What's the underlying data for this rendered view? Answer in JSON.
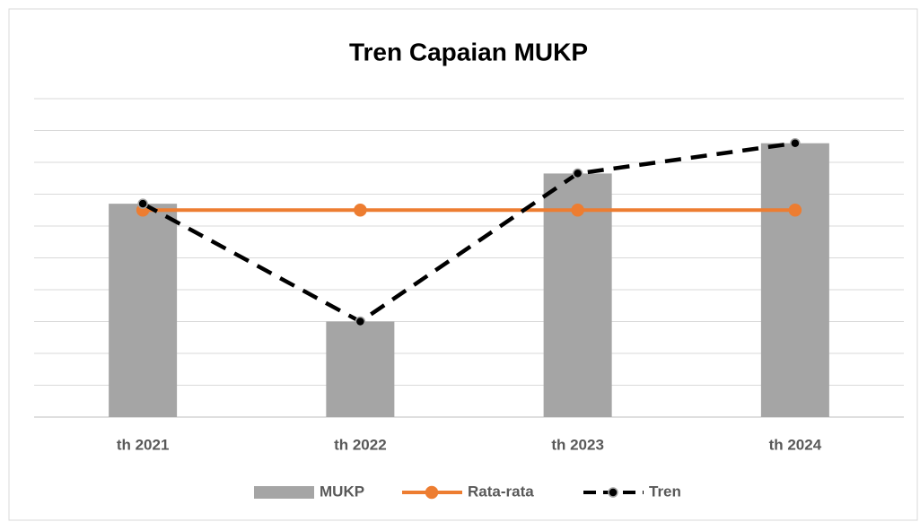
{
  "chart_data": {
    "type": "combo",
    "title": "Tren Capaian MUKP",
    "categories": [
      "th 2021",
      "th 2022",
      "th 2023",
      "th 2024"
    ],
    "series": [
      {
        "name": "MUKP",
        "type": "bar",
        "color": "#a5a5a5",
        "values": [
          6.7,
          3.0,
          7.65,
          8.6
        ]
      },
      {
        "name": "Rata-rata",
        "type": "line",
        "color": "#ed7d31",
        "values": [
          6.5,
          6.5,
          6.5,
          6.5
        ]
      },
      {
        "name": "Tren",
        "type": "line",
        "color": "#000000",
        "dashed": true,
        "values": [
          6.7,
          3.0,
          7.65,
          8.6
        ]
      }
    ],
    "ylim": [
      0,
      10
    ],
    "yticks": [
      0,
      1,
      2,
      3,
      4,
      5,
      6,
      7,
      8,
      9,
      10
    ],
    "grid": true,
    "legend": "bottom"
  }
}
